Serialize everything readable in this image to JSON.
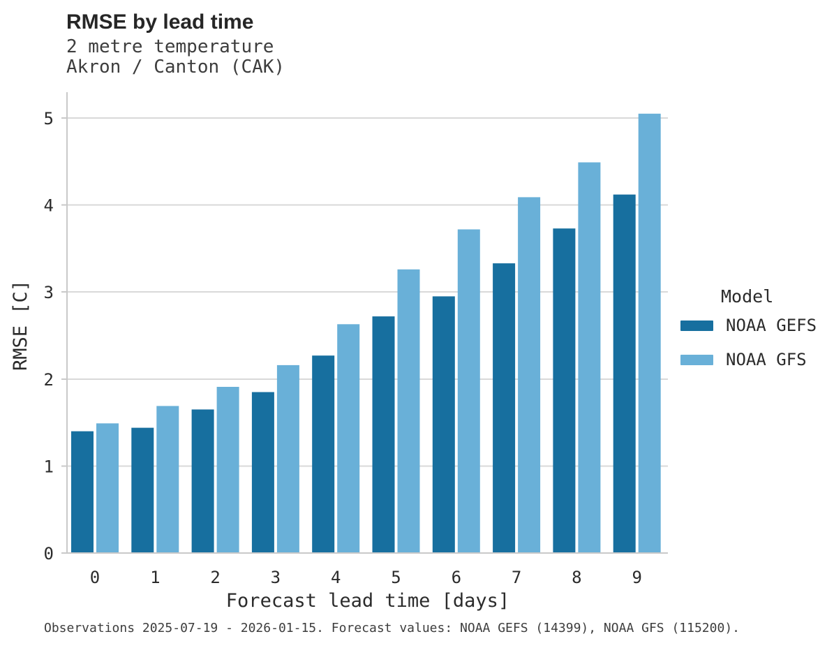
{
  "header": {
    "title": "RMSE by lead time",
    "subtitle1": "2 metre temperature",
    "subtitle2": "Akron / Canton (CAK)"
  },
  "legend": {
    "title": "Model",
    "entries": [
      {
        "label": "NOAA GEFS",
        "color": "#176f9f"
      },
      {
        "label": "NOAA GFS",
        "color": "#69b0d8"
      }
    ]
  },
  "footer": {
    "caption": "Observations 2025-07-19 - 2026-01-15. Forecast values: NOAA GEFS (14399), NOAA GFS (115200)."
  },
  "chart_data": {
    "type": "bar",
    "title": "RMSE by lead time",
    "subtitle": [
      "2 metre temperature",
      "Akron / Canton (CAK)"
    ],
    "xlabel": "Forecast lead time [days]",
    "ylabel": "RMSE [C]",
    "categories": [
      "0",
      "1",
      "2",
      "3",
      "4",
      "5",
      "6",
      "7",
      "8",
      "9"
    ],
    "series": [
      {
        "name": "NOAA GEFS",
        "color": "#176f9f",
        "values": [
          1.4,
          1.44,
          1.65,
          1.85,
          2.27,
          2.72,
          2.95,
          3.33,
          3.73,
          4.12
        ]
      },
      {
        "name": "NOAA GFS",
        "color": "#69b0d8",
        "values": [
          1.49,
          1.69,
          1.91,
          2.16,
          2.63,
          3.26,
          3.72,
          4.09,
          4.49,
          5.05
        ]
      }
    ],
    "ylim": [
      0,
      5.3
    ],
    "yticks": [
      0,
      1,
      2,
      3,
      4,
      5
    ],
    "grid": true,
    "legend_title": "Model",
    "legend_position": "right"
  }
}
